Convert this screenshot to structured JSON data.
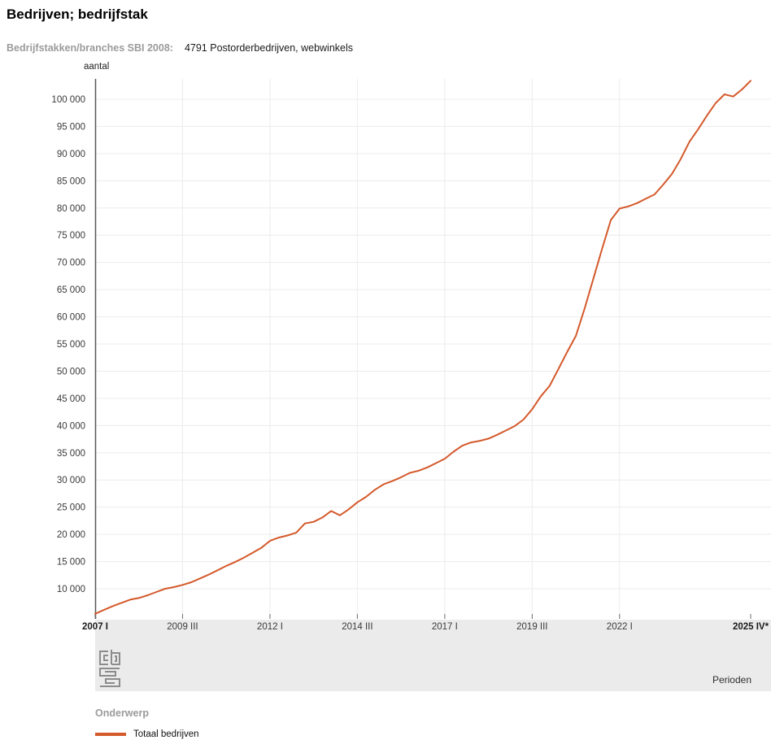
{
  "page": {
    "title": "Bedrijven; bedrijfstak"
  },
  "filter": {
    "label": "Bedrijfstakken/branches SBI 2008:",
    "value": "4791 Postorderbedrijven, webwinkels"
  },
  "colors": {
    "line": "#d4592b",
    "grid": "#ececec",
    "axis": "#565656",
    "tick": "#6e6e6e",
    "strip_bg": "#ebebeb",
    "tick_text": "#3a3a3a"
  },
  "chart_data": {
    "type": "line",
    "title": "Bedrijven; bedrijfstak",
    "ylabel": "aantal",
    "xlabel": "Perioden",
    "grid": true,
    "legend_position": "bottom",
    "ylim": [
      4470,
      103740
    ],
    "y_ticks": [
      10000,
      15000,
      20000,
      25000,
      30000,
      35000,
      40000,
      45000,
      50000,
      55000,
      60000,
      65000,
      70000,
      75000,
      80000,
      85000,
      90000,
      95000,
      100000
    ],
    "y_tick_labels": [
      "10 000",
      "15 000",
      "20 000",
      "25 000",
      "30 000",
      "35 000",
      "40 000",
      "45 000",
      "50 000",
      "55 000",
      "60 000",
      "65 000",
      "70 000",
      "75 000",
      "80 000",
      "85 000",
      "90 000",
      "95 000",
      "100 000"
    ],
    "x_tick_indices": [
      0,
      10,
      20,
      30,
      40,
      50,
      60,
      75
    ],
    "x_tick_labels": [
      "2007 I",
      "2009 III",
      "2012 I",
      "2014 III",
      "2017 I",
      "2019 III",
      "2022 I",
      "2025 IV*"
    ],
    "categories": [
      "2007 I",
      "2007 II",
      "2007 III",
      "2007 IV",
      "2008 I",
      "2008 II",
      "2008 III",
      "2008 IV",
      "2009 I",
      "2009 II",
      "2009 III",
      "2009 IV",
      "2010 I",
      "2010 II",
      "2010 III",
      "2010 IV",
      "2011 I",
      "2011 II",
      "2011 III",
      "2011 IV",
      "2012 I",
      "2012 II",
      "2012 III",
      "2012 IV",
      "2013 I",
      "2013 II",
      "2013 III",
      "2013 IV",
      "2014 I",
      "2014 II",
      "2014 III",
      "2014 IV",
      "2015 I",
      "2015 II",
      "2015 III",
      "2015 IV",
      "2016 I",
      "2016 II",
      "2016 III",
      "2016 IV",
      "2017 I",
      "2017 II",
      "2017 III",
      "2017 IV",
      "2018 I",
      "2018 II",
      "2018 III",
      "2018 IV",
      "2019 I",
      "2019 II",
      "2019 III",
      "2019 IV",
      "2020 I",
      "2020 II",
      "2020 III",
      "2020 IV",
      "2021 I",
      "2021 II",
      "2021 III",
      "2021 IV",
      "2022 I",
      "2022 II",
      "2022 III",
      "2022 IV",
      "2023 I",
      "2023 II",
      "2023 III",
      "2023 IV",
      "2024 I",
      "2024 II",
      "2024 III",
      "2024 IV",
      "2025 I",
      "2025 II",
      "2025 III",
      "2025 IV*"
    ],
    "series": [
      {
        "name": "Totaal bedrijven",
        "color": "#d4592b",
        "values": [
          5400,
          6100,
          6800,
          7400,
          8000,
          8300,
          8800,
          9400,
          10000,
          10300,
          10700,
          11200,
          11900,
          12600,
          13400,
          14200,
          14900,
          15700,
          16600,
          17500,
          18800,
          19400,
          19800,
          20300,
          22000,
          22300,
          23100,
          24300,
          23500,
          24600,
          25900,
          26900,
          28200,
          29200,
          29800,
          30500,
          31300,
          31700,
          32300,
          33100,
          33900,
          35200,
          36300,
          36900,
          37200,
          37600,
          38300,
          39100,
          39900,
          41100,
          43000,
          45400,
          47300,
          50400,
          53500,
          56500,
          61500,
          67000,
          72500,
          77800,
          79900,
          80300,
          80900,
          81700,
          82500,
          84300,
          86300,
          89000,
          92200,
          94500,
          97000,
          99300,
          100900,
          100500,
          101800,
          103400
        ]
      }
    ]
  },
  "footer": {
    "axis_label": "Perioden",
    "logo_name": "cbs-logo"
  },
  "legend": {
    "heading": "Onderwerp",
    "items": [
      {
        "label": "Totaal bedrijven",
        "color": "#d4592b"
      }
    ]
  }
}
